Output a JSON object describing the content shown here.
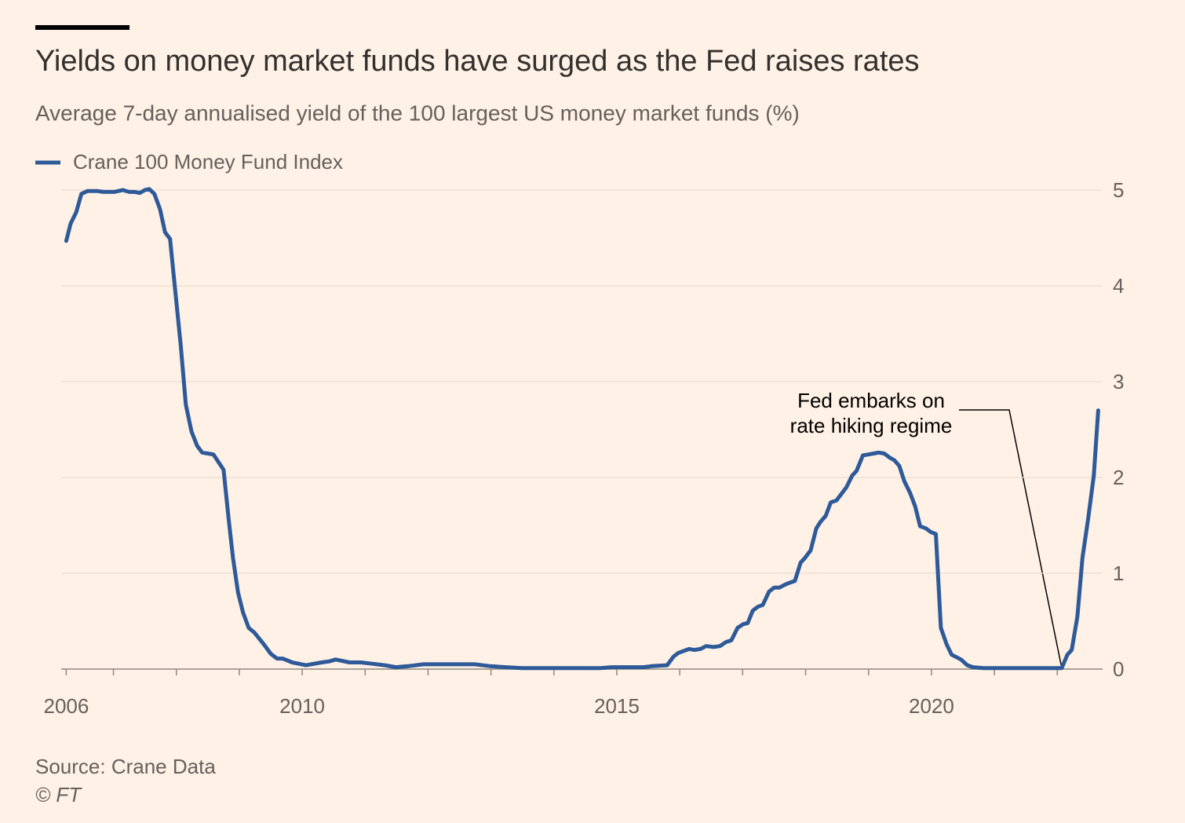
{
  "chart_data": {
    "type": "line",
    "title": "Yields on money market funds have surged as the Fed raises rates",
    "subtitle": "Average 7-day annualised yield of the 100 largest US money market funds (%)",
    "source": "Source: Crane Data",
    "copyright": "© FT",
    "annotation": [
      "Fed embarks on",
      "rate hiking regime"
    ],
    "x": [
      2006.25,
      2006.32,
      2006.41,
      2006.49,
      2006.59,
      2006.74,
      2006.84,
      2007.01,
      2007.15,
      2007.25,
      2007.34,
      2007.42,
      2007.5,
      2007.57,
      2007.65,
      2007.74,
      2007.82,
      2007.9,
      2007.97,
      2008.07,
      2008.15,
      2008.24,
      2008.33,
      2008.41,
      2008.5,
      2008.59,
      2008.68,
      2008.75,
      2008.83,
      2008.9,
      2008.98,
      2009.06,
      2009.15,
      2009.24,
      2009.4,
      2009.5,
      2009.6,
      2009.69,
      2009.84,
      2010.06,
      2010.31,
      2010.43,
      2010.53,
      2010.75,
      2010.93,
      2011.06,
      2011.31,
      2011.49,
      2011.68,
      2011.93,
      2012.18,
      2012.43,
      2012.74,
      2012.99,
      2013.24,
      2013.49,
      2013.93,
      2014.42,
      2014.74,
      2014.92,
      2015.42,
      2015.55,
      2015.8,
      2015.9,
      2015.98,
      2016.15,
      2016.23,
      2016.33,
      2016.42,
      2016.54,
      2016.64,
      2016.73,
      2016.82,
      2016.92,
      2017.01,
      2017.08,
      2017.16,
      2017.24,
      2017.32,
      2017.42,
      2017.5,
      2017.58,
      2017.67,
      2017.74,
      2017.83,
      2017.92,
      2017.99,
      2018.08,
      2018.17,
      2018.24,
      2018.32,
      2018.4,
      2018.49,
      2018.56,
      2018.65,
      2018.74,
      2018.81,
      2018.91,
      2019.0,
      2019.08,
      2019.16,
      2019.25,
      2019.33,
      2019.41,
      2019.49,
      2019.57,
      2019.66,
      2019.74,
      2019.82,
      2019.91,
      2019.99,
      2020.07,
      2020.15,
      2020.24,
      2020.32,
      2020.47,
      2020.57,
      2020.66,
      2020.82,
      2022.03,
      2022.07,
      2022.16,
      2022.23,
      2022.32,
      2022.4,
      2022.49,
      2022.58,
      2022.65
    ],
    "series": [
      {
        "name": "Crane 100 Money Fund Index",
        "color": "#2e5a99",
        "values": [
          4.47,
          4.65,
          4.77,
          4.96,
          4.99,
          4.99,
          4.98,
          4.98,
          5.0,
          4.98,
          4.98,
          4.97,
          5.0,
          5.01,
          4.96,
          4.8,
          4.56,
          4.49,
          4.03,
          3.38,
          2.76,
          2.48,
          2.33,
          2.26,
          2.25,
          2.24,
          2.15,
          2.08,
          1.57,
          1.16,
          0.8,
          0.59,
          0.43,
          0.38,
          0.25,
          0.16,
          0.11,
          0.11,
          0.07,
          0.04,
          0.07,
          0.08,
          0.1,
          0.07,
          0.07,
          0.06,
          0.04,
          0.02,
          0.03,
          0.05,
          0.05,
          0.05,
          0.05,
          0.03,
          0.02,
          0.01,
          0.01,
          0.01,
          0.01,
          0.02,
          0.02,
          0.03,
          0.04,
          0.13,
          0.17,
          0.21,
          0.2,
          0.21,
          0.24,
          0.23,
          0.24,
          0.28,
          0.3,
          0.43,
          0.47,
          0.48,
          0.61,
          0.65,
          0.67,
          0.81,
          0.85,
          0.85,
          0.88,
          0.9,
          0.92,
          1.11,
          1.16,
          1.24,
          1.47,
          1.54,
          1.6,
          1.74,
          1.76,
          1.82,
          1.9,
          2.02,
          2.07,
          2.23,
          2.24,
          2.25,
          2.26,
          2.25,
          2.21,
          2.18,
          2.12,
          1.96,
          1.84,
          1.7,
          1.49,
          1.47,
          1.43,
          1.41,
          0.43,
          0.26,
          0.15,
          0.1,
          0.04,
          0.02,
          0.01,
          0.01,
          0.01,
          0.15,
          0.2,
          0.55,
          1.16,
          1.57,
          2.02,
          2.7
        ]
      }
    ],
    "xlim": [
      2006.17,
      2022.72
    ],
    "xticks": [
      {
        "value": 2006.25,
        "label": "2006"
      },
      2010,
      2015,
      2020
    ],
    "xminor_ticks": [
      2007,
      2008,
      2009,
      2011,
      2012,
      2013,
      2014,
      2016,
      2017,
      2018,
      2019,
      2021,
      2022
    ],
    "ylim": [
      0,
      5
    ],
    "yticks": [
      0,
      1,
      2,
      3,
      4,
      5
    ],
    "grid": true,
    "legend": "top-left"
  }
}
